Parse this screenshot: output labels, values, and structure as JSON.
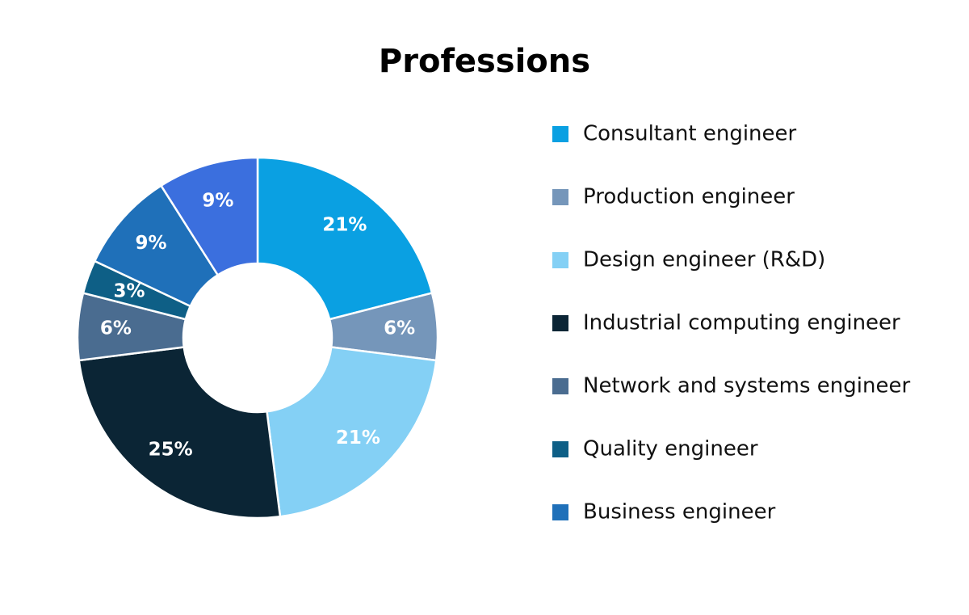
{
  "chart_data": {
    "type": "donut",
    "title": "Professions",
    "categories": [
      "Consultant engineer",
      "Production engineer",
      "Design engineer (R&D)",
      "Industrial computing engineer",
      "Network and systems engineer",
      "Quality engineer",
      "Business engineer",
      null
    ],
    "values": [
      21,
      6,
      21,
      25,
      6,
      3,
      9,
      9
    ],
    "value_labels": [
      "21%",
      "6%",
      "21%",
      "25%",
      "6%",
      "3%",
      "9%",
      "9%"
    ],
    "colors": [
      "#0aa0e2",
      "#7596ba",
      "#84d0f5",
      "#0b2535",
      "#4a6c90",
      "#0e5f86",
      "#1f70b9",
      "#3b6fde"
    ]
  }
}
